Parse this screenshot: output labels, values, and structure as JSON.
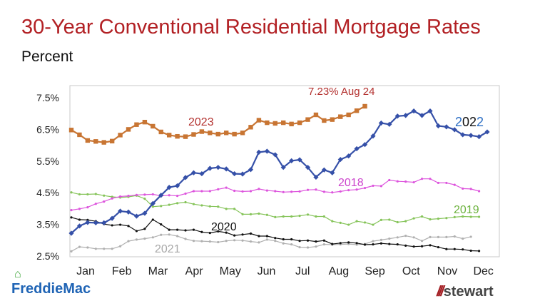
{
  "title": "30-Year Conventional Residential Mortgage Rates",
  "subtitle": "Percent",
  "chart_data": {
    "type": "line",
    "title": "30-Year Conventional Residential Mortgage Rates",
    "ylabel": "Percent",
    "xlabel": "",
    "x_ticks": [
      "Jan",
      "Feb",
      "Mar",
      "Apr",
      "May",
      "Jun",
      "Jul",
      "Aug",
      "Sep",
      "Oct",
      "Nov",
      "Dec"
    ],
    "y_ticks": [
      "2.5%",
      "3.5%",
      "4.5%",
      "5.5%",
      "6.5%",
      "7.5%"
    ],
    "ylim": [
      2.5,
      7.5
    ],
    "grid": false,
    "annotation": "7.23% Aug 24",
    "series": [
      {
        "name": "2023",
        "color": "#c87533",
        "marker": "square",
        "values": [
          6.48,
          6.33,
          6.15,
          6.12,
          6.09,
          6.13,
          6.32,
          6.5,
          6.65,
          6.73,
          6.6,
          6.42,
          6.32,
          6.28,
          6.27,
          6.34,
          6.43,
          6.39,
          6.35,
          6.39,
          6.35,
          6.39,
          6.57,
          6.79,
          6.71,
          6.69,
          6.71,
          6.67,
          6.71,
          6.81,
          6.96,
          6.78,
          6.81,
          6.9,
          6.96,
          7.09,
          7.23
        ]
      },
      {
        "name": "2022",
        "color": "#3550a8",
        "marker": "diamond",
        "values": [
          3.22,
          3.45,
          3.56,
          3.55,
          3.55,
          3.69,
          3.92,
          3.89,
          3.76,
          3.85,
          4.16,
          4.42,
          4.67,
          4.72,
          4.98,
          5.13,
          5.1,
          5.27,
          5.3,
          5.25,
          5.1,
          5.09,
          5.23,
          5.78,
          5.81,
          5.7,
          5.3,
          5.51,
          5.54,
          5.3,
          4.99,
          5.22,
          5.13,
          5.55,
          5.66,
          5.89,
          6.02,
          6.29,
          6.7,
          6.66,
          6.92,
          6.94,
          7.08,
          6.94,
          7.08,
          6.61,
          6.58,
          6.49,
          6.33,
          6.31,
          6.27,
          6.42
        ]
      },
      {
        "name": "2018",
        "color": "#dd55dd",
        "marker": "dot",
        "values": [
          3.95,
          3.99,
          4.04,
          4.15,
          4.22,
          4.32,
          4.38,
          4.4,
          4.43,
          4.44,
          4.45,
          4.4,
          4.42,
          4.4,
          4.47,
          4.55,
          4.55,
          4.55,
          4.61,
          4.66,
          4.56,
          4.54,
          4.55,
          4.62,
          4.57,
          4.55,
          4.52,
          4.53,
          4.54,
          4.59,
          4.6,
          4.53,
          4.51,
          4.54,
          4.58,
          4.6,
          4.65,
          4.72,
          4.71,
          4.9,
          4.86,
          4.85,
          4.83,
          4.94,
          4.94,
          4.81,
          4.81,
          4.75,
          4.63,
          4.62,
          4.55
        ]
      },
      {
        "name": "2019",
        "color": "#86c45a",
        "marker": "dot",
        "values": [
          4.51,
          4.45,
          4.45,
          4.46,
          4.41,
          4.37,
          4.35,
          4.37,
          4.41,
          4.31,
          4.06,
          4.08,
          4.12,
          4.17,
          4.2,
          4.14,
          4.1,
          4.07,
          4.06,
          3.99,
          3.99,
          3.82,
          3.82,
          3.84,
          3.8,
          3.73,
          3.75,
          3.75,
          3.77,
          3.81,
          3.75,
          3.75,
          3.6,
          3.55,
          3.49,
          3.6,
          3.56,
          3.49,
          3.64,
          3.65,
          3.57,
          3.6,
          3.69,
          3.75,
          3.66,
          3.68,
          3.7,
          3.73,
          3.75,
          3.74,
          3.74
        ]
      },
      {
        "name": "2020",
        "color": "#111111",
        "marker": "dot",
        "values": [
          3.72,
          3.65,
          3.64,
          3.6,
          3.51,
          3.47,
          3.49,
          3.45,
          3.29,
          3.36,
          3.65,
          3.5,
          3.33,
          3.33,
          3.31,
          3.33,
          3.26,
          3.23,
          3.28,
          3.24,
          3.15,
          3.18,
          3.21,
          3.13,
          3.13,
          3.07,
          3.03,
          3.03,
          2.98,
          2.99,
          2.96,
          2.99,
          2.88,
          2.91,
          2.93,
          2.91,
          2.86,
          2.87,
          2.9,
          2.88,
          2.87,
          2.83,
          2.8,
          2.81,
          2.84,
          2.78,
          2.72,
          2.72,
          2.71,
          2.67,
          2.66
        ]
      },
      {
        "name": "2021",
        "color": "#b0b0b0",
        "marker": "dot",
        "values": [
          2.65,
          2.79,
          2.77,
          2.73,
          2.73,
          2.73,
          2.81,
          2.97,
          3.02,
          3.05,
          3.09,
          3.17,
          3.18,
          3.13,
          3.04,
          2.98,
          2.97,
          2.96,
          2.94,
          2.98,
          3.0,
          2.99,
          2.96,
          2.93,
          3.02,
          2.98,
          2.9,
          2.87,
          2.78,
          2.77,
          2.8,
          2.87,
          2.86,
          2.87,
          2.88,
          2.86,
          2.88,
          2.97,
          3.01,
          3.05,
          3.09,
          3.14,
          3.09,
          2.98,
          3.1,
          3.1,
          3.1,
          3.12,
          3.05,
          3.11
        ]
      }
    ],
    "series_label_colors": {
      "2023": "#b3312f",
      "2022": "#2e6fc4",
      "2018": "#cc44cc",
      "2019": "#6db33f",
      "2020": "#111111",
      "2021": "#a8a8a8"
    }
  },
  "logos": {
    "left": "FreddieMac",
    "right": "stewart"
  }
}
